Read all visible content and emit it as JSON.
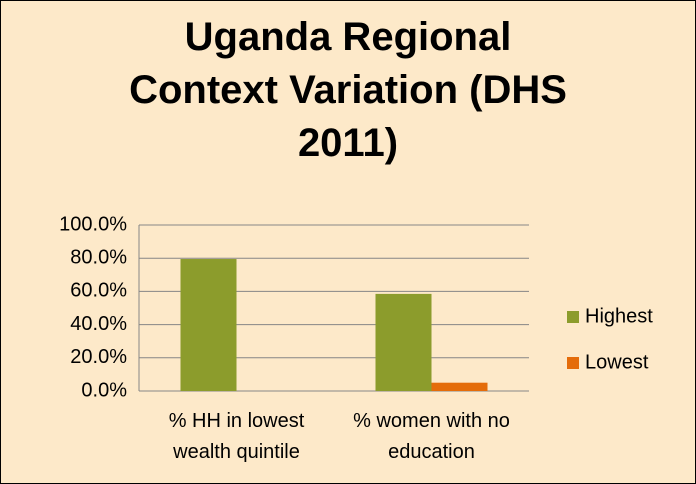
{
  "chart_data": {
    "type": "bar",
    "title": "Uganda Regional Context Variation (DHS 2011)",
    "categories": [
      "% HH in lowest wealth quintile",
      "% women with no education"
    ],
    "series": [
      {
        "name": "Highest",
        "color": "#8c9c2c",
        "values": [
          79.5,
          58.5
        ]
      },
      {
        "name": "Lowest",
        "color": "#e46c0a",
        "values": [
          0,
          5
        ]
      }
    ],
    "ylim": [
      0,
      100
    ],
    "yticks": [
      {
        "value": 0,
        "label": "0.0%"
      },
      {
        "value": 20,
        "label": "20.0%"
      },
      {
        "value": 40,
        "label": "40.0%"
      },
      {
        "value": 60,
        "label": "60.0%"
      },
      {
        "value": 80,
        "label": "80.0%"
      },
      {
        "value": 100,
        "label": "100.0%"
      }
    ],
    "grid": true,
    "legend": "right"
  }
}
